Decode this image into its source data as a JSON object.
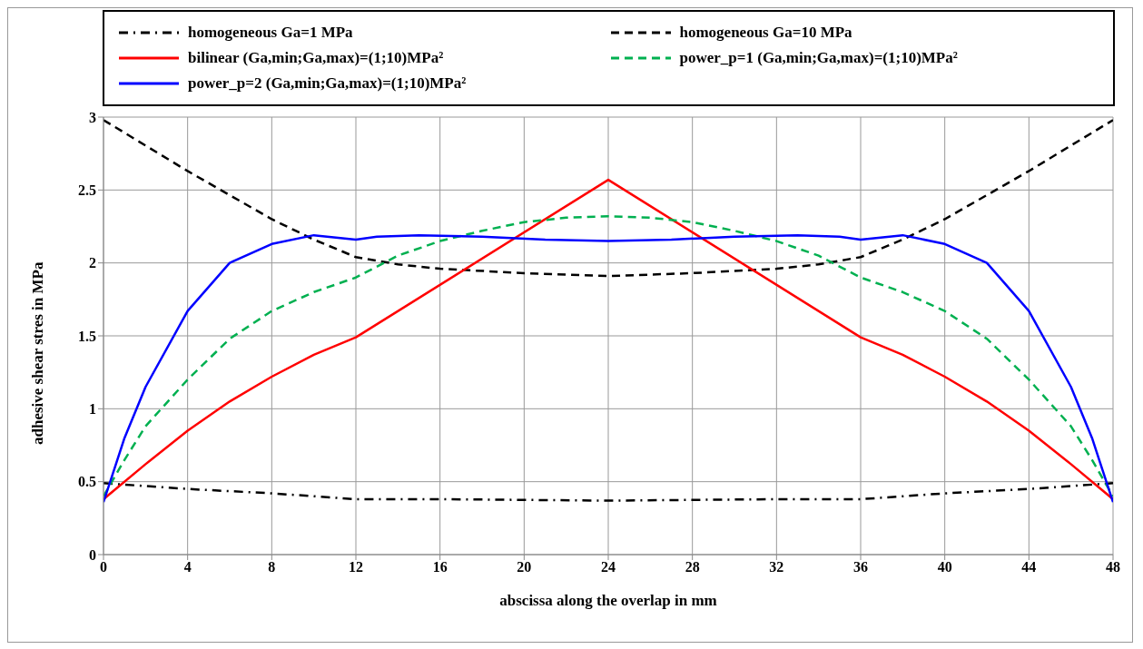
{
  "chart_data": {
    "type": "line",
    "xlabel": "abscissa along the overlap in mm",
    "ylabel": "adhesive shear stres in MPa",
    "xlim": [
      0,
      48
    ],
    "xticks": [
      0,
      4,
      8,
      12,
      16,
      20,
      24,
      28,
      32,
      36,
      40,
      44,
      48
    ],
    "ylim": [
      0,
      3
    ],
    "yticks": [
      0,
      0.5,
      1,
      1.5,
      2,
      2.5,
      3
    ],
    "grid": true,
    "legend": "top",
    "marker": "none",
    "series": [
      {
        "name": "homogeneous Ga=1 MPa",
        "color": "#000000",
        "line_style": "dashdot",
        "x": [
          0,
          4,
          8,
          12,
          16,
          24,
          32,
          36,
          40,
          44,
          48
        ],
        "values": [
          0.49,
          0.45,
          0.42,
          0.38,
          0.38,
          0.37,
          0.38,
          0.38,
          0.42,
          0.45,
          0.49
        ]
      },
      {
        "name": "homogeneous Ga=10 MPa",
        "color": "#000000",
        "line_style": "dashed",
        "x": [
          0,
          4,
          8,
          10,
          12,
          14,
          16,
          20,
          24,
          28,
          32,
          34,
          36,
          38,
          40,
          44,
          48
        ],
        "values": [
          2.98,
          2.63,
          2.3,
          2.16,
          2.04,
          1.99,
          1.96,
          1.93,
          1.91,
          1.93,
          1.96,
          1.99,
          2.04,
          2.16,
          2.3,
          2.63,
          2.98
        ]
      },
      {
        "name": "bilinear (Ga,min;Ga,max)=(1;10)MPa²",
        "color": "#ff0000",
        "line_style": "solid",
        "x": [
          0,
          2,
          4,
          6,
          8,
          10,
          12,
          24,
          36,
          38,
          40,
          42,
          44,
          46,
          48
        ],
        "values": [
          0.38,
          0.62,
          0.85,
          1.05,
          1.22,
          1.37,
          1.49,
          2.57,
          1.49,
          1.37,
          1.22,
          1.05,
          0.85,
          0.62,
          0.38
        ]
      },
      {
        "name": "power_p=1 (Ga,min;Ga,max)=(1;10)MPa²",
        "color": "#00b050",
        "line_style": "dashed",
        "x": [
          0,
          1,
          2,
          4,
          6,
          8,
          10,
          12,
          14,
          16,
          18,
          20,
          22,
          24,
          26,
          28,
          30,
          32,
          34,
          36,
          38,
          40,
          42,
          44,
          46,
          47,
          48
        ],
        "values": [
          0.4,
          0.65,
          0.88,
          1.2,
          1.48,
          1.67,
          1.8,
          1.9,
          2.05,
          2.15,
          2.22,
          2.28,
          2.31,
          2.32,
          2.31,
          2.28,
          2.22,
          2.15,
          2.05,
          1.9,
          1.8,
          1.67,
          1.48,
          1.2,
          0.88,
          0.65,
          0.4
        ]
      },
      {
        "name": "power_p=2 (Ga,min;Ga,max)=(1;10)MPa²",
        "color": "#0000ff",
        "line_style": "solid",
        "x": [
          0,
          1,
          2,
          4,
          6,
          8,
          10,
          12,
          13,
          15,
          18,
          21,
          24,
          27,
          30,
          33,
          35,
          36,
          38,
          40,
          42,
          44,
          46,
          47,
          48
        ],
        "values": [
          0.36,
          0.8,
          1.15,
          1.67,
          2.0,
          2.13,
          2.19,
          2.16,
          2.18,
          2.19,
          2.18,
          2.16,
          2.15,
          2.16,
          2.18,
          2.19,
          2.18,
          2.16,
          2.19,
          2.13,
          2.0,
          1.67,
          1.15,
          0.8,
          0.36
        ]
      }
    ]
  }
}
